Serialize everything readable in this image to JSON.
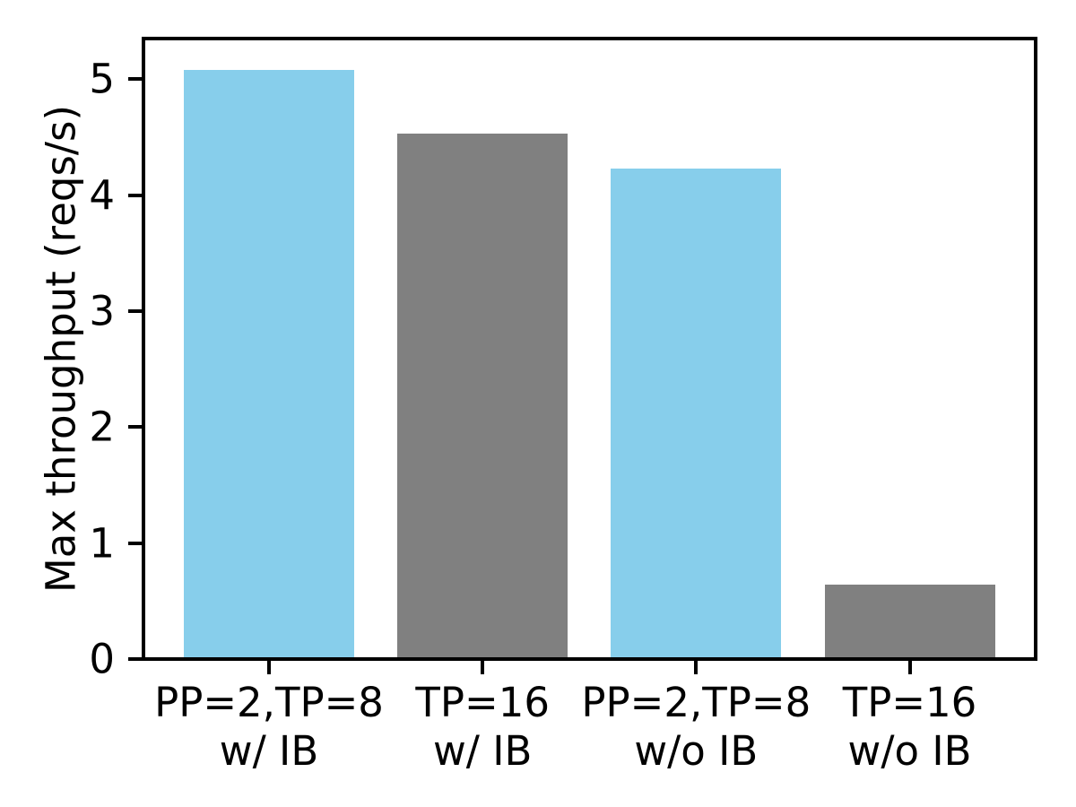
{
  "chart_data": {
    "type": "bar",
    "title": "",
    "xlabel": "",
    "ylabel": "Max throughput (reqs/s)",
    "categories": [
      "PP=2,TP=8\nw/ IB",
      "TP=16\nw/ IB",
      "PP=2,TP=8\nw/o IB",
      "TP=16\nw/o IB"
    ],
    "values": [
      5.08,
      4.53,
      4.23,
      0.64
    ],
    "bar_colors": [
      "#87CEEB",
      "#808080",
      "#87CEEB",
      "#808080"
    ],
    "yticks": [
      0,
      1,
      2,
      3,
      4,
      5
    ],
    "ylim": [
      0,
      5.35
    ],
    "grid": false,
    "legend": null,
    "axis_color": "#000000",
    "background_color": "#ffffff"
  }
}
